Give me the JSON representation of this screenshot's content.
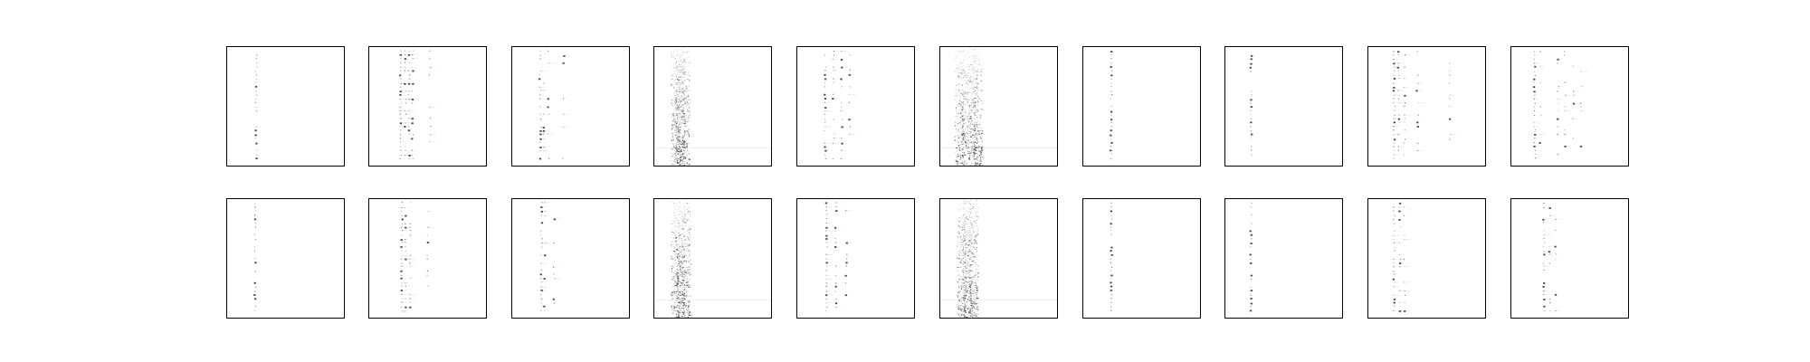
{
  "chart_data": [
    {
      "type": "heatmap",
      "row": 1,
      "col": 1,
      "pattern": "single",
      "cols": [
        0.25
      ],
      "density": 0.45,
      "colors": {
        "ink": "#111111"
      }
    },
    {
      "type": "heatmap",
      "row": 1,
      "col": 2,
      "pattern": "multi",
      "cols": [
        0.27,
        0.31,
        0.34,
        0.37,
        0.52
      ],
      "density": 0.8
    },
    {
      "type": "heatmap",
      "row": 1,
      "col": 3,
      "pattern": "multi",
      "cols": [
        0.24,
        0.27,
        0.31,
        0.44
      ],
      "density": 0.45
    },
    {
      "type": "heatmap",
      "row": 1,
      "col": 4,
      "pattern": "band",
      "cols": [
        0.18,
        0.22,
        0.26
      ],
      "density": 0.9
    },
    {
      "type": "heatmap",
      "row": 1,
      "col": 5,
      "pattern": "multi",
      "cols": [
        0.24,
        0.31,
        0.38,
        0.45
      ],
      "density": 0.6
    },
    {
      "type": "heatmap",
      "row": 1,
      "col": 6,
      "pattern": "band",
      "cols": [
        0.16,
        0.22,
        0.28,
        0.32
      ],
      "density": 0.95
    },
    {
      "type": "heatmap",
      "row": 1,
      "col": 7,
      "pattern": "single",
      "cols": [
        0.24
      ],
      "density": 0.6
    },
    {
      "type": "heatmap",
      "row": 1,
      "col": 8,
      "pattern": "single",
      "cols": [
        0.22
      ],
      "density": 0.3
    },
    {
      "type": "heatmap",
      "row": 1,
      "col": 9,
      "pattern": "multi",
      "cols": [
        0.22,
        0.26,
        0.31,
        0.42,
        0.7
      ],
      "density": 0.65
    },
    {
      "type": "heatmap",
      "row": 1,
      "col": 10,
      "pattern": "multi",
      "cols": [
        0.2,
        0.25,
        0.4,
        0.46,
        0.53,
        0.6
      ],
      "density": 0.6
    },
    {
      "type": "heatmap",
      "row": 2,
      "col": 1,
      "pattern": "single",
      "cols": [
        0.24
      ],
      "density": 0.45
    },
    {
      "type": "heatmap",
      "row": 2,
      "col": 2,
      "pattern": "multi",
      "cols": [
        0.28,
        0.31,
        0.35,
        0.5
      ],
      "density": 0.7
    },
    {
      "type": "heatmap",
      "row": 2,
      "col": 3,
      "pattern": "multi",
      "cols": [
        0.25,
        0.28,
        0.36
      ],
      "density": 0.5
    },
    {
      "type": "heatmap",
      "row": 2,
      "col": 4,
      "pattern": "band",
      "cols": [
        0.18,
        0.22,
        0.27
      ],
      "density": 0.85
    },
    {
      "type": "heatmap",
      "row": 2,
      "col": 5,
      "pattern": "multi",
      "cols": [
        0.25,
        0.33,
        0.42
      ],
      "density": 0.6
    },
    {
      "type": "heatmap",
      "row": 2,
      "col": 6,
      "pattern": "band",
      "cols": [
        0.18,
        0.23,
        0.28
      ],
      "density": 0.9
    },
    {
      "type": "heatmap",
      "row": 2,
      "col": 7,
      "pattern": "single",
      "cols": [
        0.24
      ],
      "density": 0.6
    },
    {
      "type": "heatmap",
      "row": 2,
      "col": 8,
      "pattern": "single",
      "cols": [
        0.22
      ],
      "density": 0.35
    },
    {
      "type": "heatmap",
      "row": 2,
      "col": 9,
      "pattern": "multi",
      "cols": [
        0.22,
        0.27,
        0.31
      ],
      "density": 0.5
    },
    {
      "type": "heatmap",
      "row": 2,
      "col": 10,
      "pattern": "multi",
      "cols": [
        0.28,
        0.33,
        0.38
      ],
      "density": 0.4
    }
  ]
}
